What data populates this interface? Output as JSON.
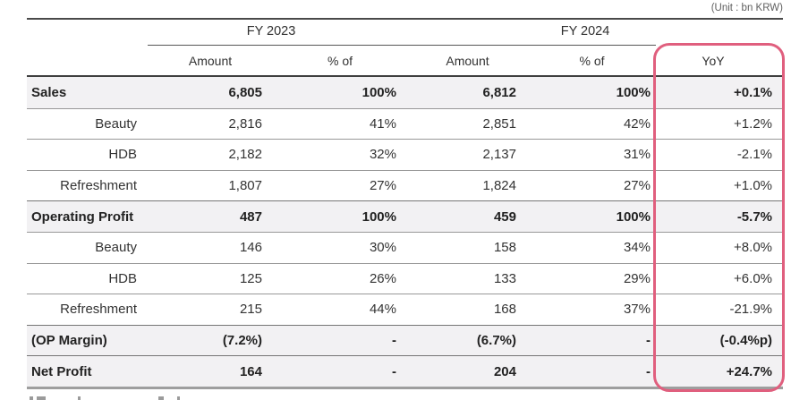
{
  "unit_label": "(Unit : bn KRW)",
  "colors": {
    "highlight": "#e05f7e",
    "section_row_bg": "#f2f1f3",
    "rule_dark": "#3f3f3f",
    "rule_light": "#9e9e9e"
  },
  "chart_data": {
    "type": "table",
    "unit": "(Unit : bn KRW)",
    "column_groups": [
      {
        "label": "FY 2023",
        "columns": [
          "Amount",
          "% of"
        ]
      },
      {
        "label": "FY 2024",
        "columns": [
          "Amount",
          "% of"
        ]
      }
    ],
    "columns": [
      "Amount",
      "% of",
      "Amount",
      "% of",
      "YoY"
    ],
    "highlighted_column": "YoY",
    "rows": [
      {
        "label": "Sales",
        "type": "section",
        "values": [
          "6,805",
          "100%",
          "6,812",
          "100%",
          "+0.1%"
        ]
      },
      {
        "label": "Beauty",
        "type": "sub",
        "values": [
          "2,816",
          "41%",
          "2,851",
          "42%",
          "+1.2%"
        ]
      },
      {
        "label": "HDB",
        "type": "sub",
        "values": [
          "2,182",
          "32%",
          "2,137",
          "31%",
          "-2.1%"
        ]
      },
      {
        "label": "Refreshment",
        "type": "sub",
        "values": [
          "1,807",
          "27%",
          "1,824",
          "27%",
          "+1.0%"
        ]
      },
      {
        "label": "Operating Profit",
        "type": "section",
        "values": [
          "487",
          "100%",
          "459",
          "100%",
          "-5.7%"
        ]
      },
      {
        "label": "Beauty",
        "type": "sub",
        "values": [
          "146",
          "30%",
          "158",
          "34%",
          "+8.0%"
        ]
      },
      {
        "label": "HDB",
        "type": "sub",
        "values": [
          "125",
          "26%",
          "133",
          "29%",
          "+6.0%"
        ]
      },
      {
        "label": "Refreshment",
        "type": "sub",
        "values": [
          "215",
          "44%",
          "168",
          "37%",
          "-21.9%"
        ]
      },
      {
        "label": "(OP Margin)",
        "type": "section",
        "values": [
          "(7.2%)",
          "-",
          "(6.7%)",
          "-",
          "(-0.4%p)"
        ]
      },
      {
        "label": "Net Profit",
        "type": "section",
        "values": [
          "164",
          "-",
          "204",
          "-",
          "+24.7%"
        ]
      }
    ]
  }
}
